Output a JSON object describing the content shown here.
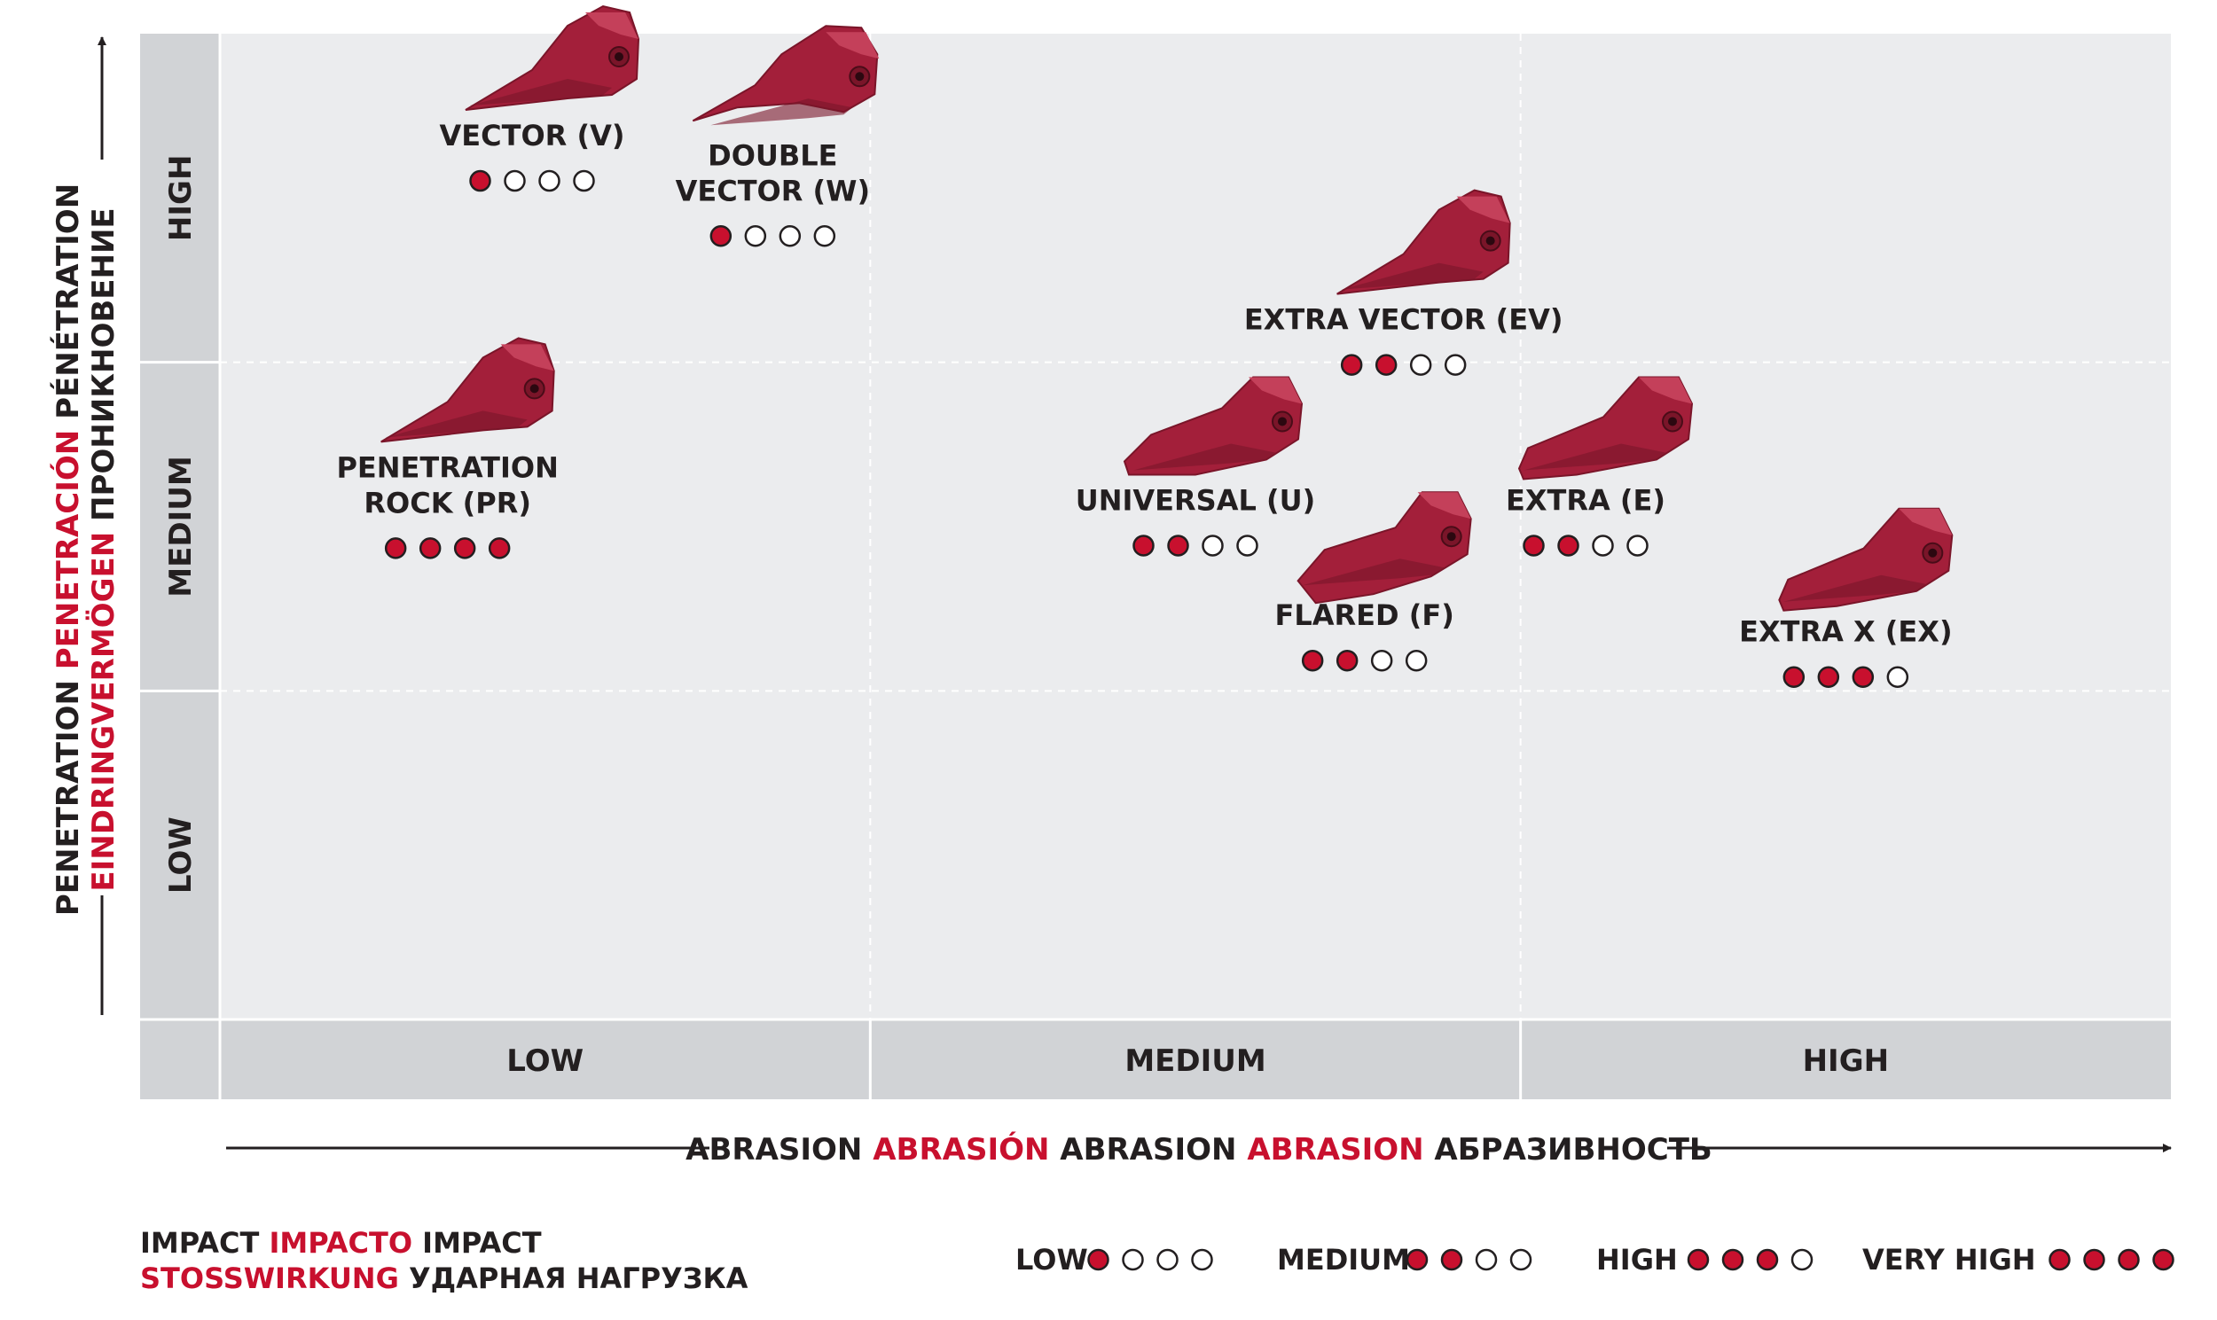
{
  "chart_data": {
    "type": "scatter",
    "x_axis": {
      "categories": [
        "LOW",
        "MEDIUM",
        "HIGH"
      ],
      "title_parts": [
        {
          "text": "ABRASION",
          "color": "#231f20"
        },
        {
          "text": "ABRASIÓN",
          "color": "#c8102e"
        },
        {
          "text": "ABRASION",
          "color": "#231f20"
        },
        {
          "text": "ABRASION",
          "color": "#c8102e"
        },
        {
          "text": "АБРАЗИВНОСТЬ",
          "color": "#231f20"
        }
      ]
    },
    "y_axis": {
      "categories": [
        "LOW",
        "MEDIUM",
        "HIGH"
      ],
      "title_line1": [
        {
          "text": "PENETRATION",
          "color": "#231f20"
        },
        {
          "text": "PENETRACIÓN",
          "color": "#c8102e"
        },
        {
          "text": "PÉNÉTRATION",
          "color": "#231f20"
        }
      ],
      "title_line2": [
        {
          "text": "EINDRINGVERMÖGEN",
          "color": "#c8102e"
        },
        {
          "text": "ПРОНИКНОВЕНИЕ",
          "color": "#231f20"
        }
      ]
    },
    "points": [
      {
        "lines": [
          "VECTOR (V)"
        ],
        "abrasion": 0.48,
        "penetration": 2.66,
        "impact": 1,
        "shape": "beak"
      },
      {
        "lines": [
          "DOUBLE",
          "VECTOR (W)"
        ],
        "abrasion": 0.85,
        "penetration": 2.6,
        "impact": 1,
        "shape": "fork"
      },
      {
        "lines": [
          "PENETRATION",
          "ROCK (PR)"
        ],
        "abrasion": 0.35,
        "penetration": 1.65,
        "impact": 4,
        "shape": "beak"
      },
      {
        "lines": [
          "EXTRA VECTOR (EV)"
        ],
        "abrasion": 1.82,
        "penetration": 2.1,
        "impact": 2,
        "shape": "beak"
      },
      {
        "lines": [
          "UNIVERSAL (U)"
        ],
        "abrasion": 1.5,
        "penetration": 1.55,
        "impact": 2,
        "shape": "wedge"
      },
      {
        "lines": [
          "FLARED (F)"
        ],
        "abrasion": 1.76,
        "penetration": 1.2,
        "impact": 2,
        "shape": "flare"
      },
      {
        "lines": [
          "EXTRA (E)"
        ],
        "abrasion": 2.1,
        "penetration": 1.55,
        "impact": 2,
        "shape": "blunt"
      },
      {
        "lines": [
          "EXTRA X (EX)"
        ],
        "abrasion": 2.5,
        "penetration": 1.15,
        "impact": 3,
        "shape": "blunt"
      }
    ],
    "legend": {
      "title_line1": [
        {
          "text": "IMPACT",
          "color": "#231f20"
        },
        {
          "text": "IMPACTO",
          "color": "#c8102e"
        },
        {
          "text": "IMPACT",
          "color": "#231f20"
        }
      ],
      "title_line2": [
        {
          "text": "STOSSWIRKUNG",
          "color": "#c8102e"
        },
        {
          "text": "УДАРНАЯ НАГРУЗКА",
          "color": "#231f20"
        }
      ],
      "items": [
        {
          "label": "LOW",
          "filled": 1
        },
        {
          "label": "MEDIUM",
          "filled": 2
        },
        {
          "label": "HIGH",
          "filled": 3
        },
        {
          "label": "VERY HIGH",
          "filled": 4
        }
      ],
      "max_dots": 4
    },
    "colors": {
      "accent": "#c8102e",
      "text": "#231f20",
      "plot_bg": "#ebecee",
      "band_bg": "#d1d3d6",
      "tooth": "#a31f3a",
      "tooth_dark": "#7a1529",
      "tooth_light": "#c4405a"
    }
  }
}
